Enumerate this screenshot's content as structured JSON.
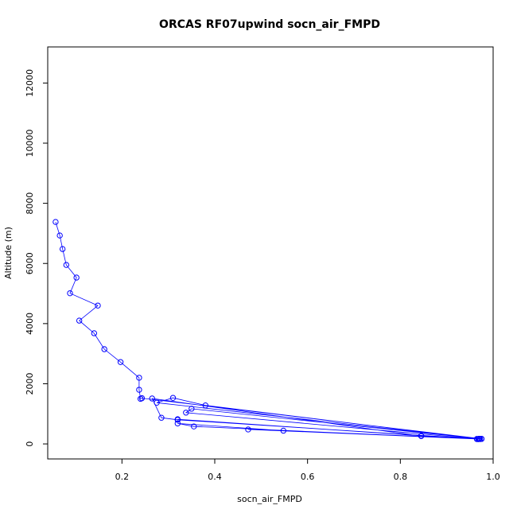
{
  "chart_data": {
    "type": "line",
    "title": "ORCAS RF07upwind socn_air_FMPD",
    "xlabel": "socn_air_FMPD",
    "ylabel": "Altitude (m)",
    "xlim": [
      0.04,
      1.0
    ],
    "ylim": [
      -500,
      13200
    ],
    "x_ticks": [
      0.2,
      0.4,
      0.6,
      0.8,
      1.0
    ],
    "x_tick_labels": [
      "0.2",
      "0.4",
      "0.6",
      "0.8",
      "1.0"
    ],
    "y_ticks": [
      0,
      2000,
      4000,
      6000,
      8000,
      10000,
      12000
    ],
    "y_tick_labels": [
      "0",
      "2000",
      "4000",
      "6000",
      "8000",
      "10000",
      "12000"
    ],
    "grid": false,
    "legend": "none",
    "markers": "open-circle",
    "color": "#0000ff",
    "series": [
      {
        "x": [
          0.057,
          0.066,
          0.072,
          0.08,
          0.102,
          0.088,
          0.148,
          0.108,
          0.14,
          0.162,
          0.197,
          0.237,
          0.237,
          0.24,
          0.243,
          0.975,
          0.965,
          0.97,
          0.275,
          0.31,
          0.38,
          0.97,
          0.975,
          0.35,
          0.338,
          0.968,
          0.845,
          0.265,
          0.285,
          0.32,
          0.965,
          0.472,
          0.968,
          0.548,
          0.32,
          0.355,
          0.972,
          0.845,
          0.32
        ],
        "y": [
          7380,
          6930,
          6480,
          5950,
          5530,
          5010,
          4600,
          4100,
          3680,
          3150,
          2720,
          2200,
          1800,
          1500,
          1520,
          170,
          160,
          170,
          1370,
          1530,
          1280,
          170,
          165,
          1170,
          1040,
          160,
          260,
          1510,
          870,
          800,
          165,
          480,
          160,
          440,
          680,
          580,
          160,
          270,
          820
        ]
      }
    ]
  }
}
